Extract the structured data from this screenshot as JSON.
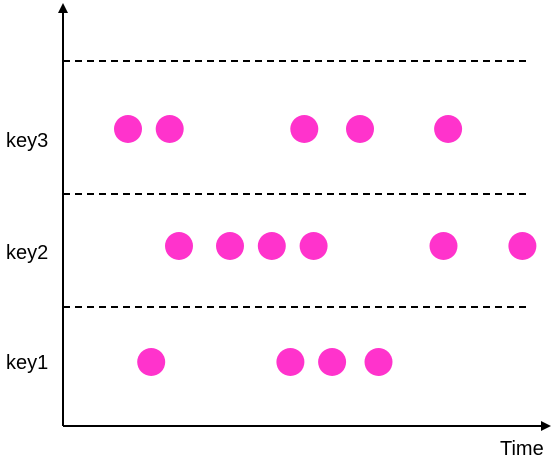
{
  "axis": {
    "x_label": "Time"
  },
  "style": {
    "dot_color": "#ff33cc",
    "line_color": "#000000"
  },
  "lanes": [
    {
      "label": "key3",
      "events": [
        0.14,
        0.23,
        0.52,
        0.64,
        0.83
      ]
    },
    {
      "label": "key2",
      "events": [
        0.25,
        0.36,
        0.45,
        0.54,
        0.82,
        0.99
      ]
    },
    {
      "label": "key1",
      "events": [
        0.19,
        0.49,
        0.58,
        0.68
      ]
    }
  ]
}
